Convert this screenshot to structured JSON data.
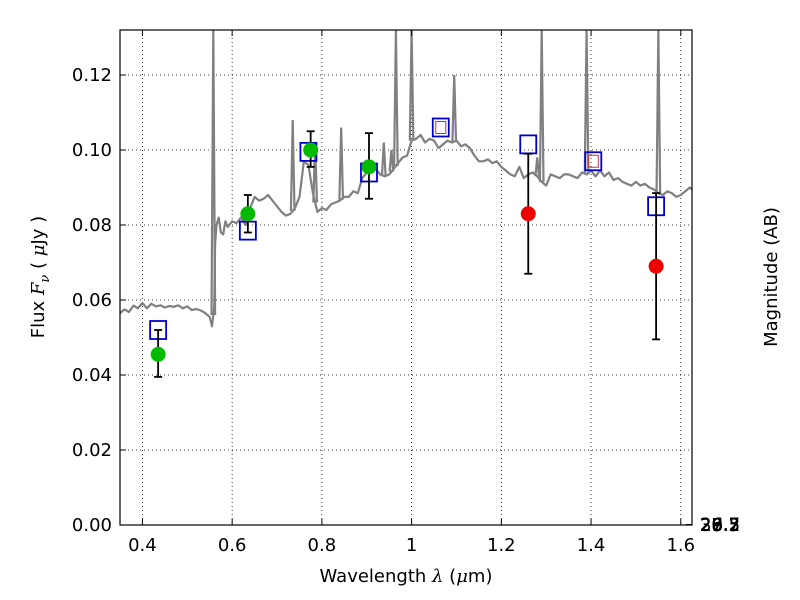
{
  "chart_data": {
    "type": "scatter",
    "title": "",
    "xlabel": {
      "prefix": "Wavelength  ",
      "symbol": "λ",
      "unit_open": " (",
      "unit_mu": "μ",
      "unit_close": "m)"
    },
    "ylabel": {
      "prefix": "Flux  ",
      "symbol": "F",
      "subscript": "ν",
      "unit_open": "  (  ",
      "unit_mu": "μ",
      "unit_close": "Jy )"
    },
    "y2label": "Magnitude (AB)",
    "xlim": [
      0.35,
      1.625
    ],
    "ylim": [
      0.0,
      0.132
    ],
    "grid": true,
    "xticks": [
      {
        "value": 0.4,
        "label": "0.4"
      },
      {
        "value": 0.6,
        "label": "0.6"
      },
      {
        "value": 0.8,
        "label": "0.8"
      },
      {
        "value": 1.0,
        "label": "1"
      },
      {
        "value": 1.2,
        "label": "1.2"
      },
      {
        "value": 1.4,
        "label": "1.4"
      },
      {
        "value": 1.6,
        "label": "1.6"
      }
    ],
    "yticks": [
      {
        "value": 0.0,
        "label": "0.00"
      },
      {
        "value": 0.02,
        "label": "0.02"
      },
      {
        "value": 0.04,
        "label": "0.04"
      },
      {
        "value": 0.06,
        "label": "0.06"
      },
      {
        "value": 0.08,
        "label": "0.08"
      },
      {
        "value": 0.1,
        "label": "0.10"
      },
      {
        "value": 0.12,
        "label": "0.12"
      }
    ],
    "y2ticks": [
      {
        "label": "26.2",
        "value": 26.2
      },
      {
        "label": "26.3",
        "value": 26.3
      },
      {
        "label": "26.5",
        "value": 26.5
      },
      {
        "label": "26.7",
        "value": 26.7
      },
      {
        "label": "27",
        "value": 27.0
      },
      {
        "label": "27.2",
        "value": 27.2
      },
      {
        "label": "27.5",
        "value": 27.5
      },
      {
        "label": "28",
        "value": 28.0
      },
      {
        "label": "28.5",
        "value": 28.5
      },
      {
        "label": "29",
        "value": 29.0
      },
      {
        "label": "30",
        "value": 30.0
      }
    ],
    "colors": {
      "spectrum": "#808080",
      "model_squares": "#0000cc",
      "model_square_inner": "#cc3333",
      "obs_green": "#00bb00",
      "obs_red": "#ee0000",
      "errorbar": "#000000"
    },
    "series": [
      {
        "kind": "spectrum-line",
        "x": [
          0.35,
          0.36,
          0.37,
          0.38,
          0.39,
          0.4,
          0.41,
          0.42,
          0.43,
          0.44,
          0.45,
          0.46,
          0.47,
          0.48,
          0.49,
          0.5,
          0.51,
          0.52,
          0.53,
          0.54,
          0.55,
          0.555,
          0.56,
          0.562,
          0.565,
          0.57,
          0.575,
          0.58,
          0.585,
          0.59,
          0.6,
          0.61,
          0.62,
          0.63,
          0.64,
          0.65,
          0.66,
          0.67,
          0.68,
          0.69,
          0.7,
          0.71,
          0.72,
          0.73,
          0.74,
          0.75,
          0.76,
          0.77,
          0.78,
          0.79,
          0.8,
          0.81,
          0.82,
          0.83,
          0.84,
          0.85,
          0.86,
          0.87,
          0.88,
          0.89,
          0.9,
          0.91,
          0.92,
          0.93,
          0.94,
          0.95,
          0.96,
          0.97,
          0.98,
          0.99,
          1.0,
          1.01,
          1.02,
          1.03,
          1.04,
          1.05,
          1.06,
          1.07,
          1.08,
          1.09,
          1.1,
          1.11,
          1.12,
          1.13,
          1.14,
          1.15,
          1.16,
          1.17,
          1.18,
          1.19,
          1.2,
          1.21,
          1.22,
          1.23,
          1.24,
          1.25,
          1.26,
          1.27,
          1.28,
          1.29,
          1.3,
          1.31,
          1.32,
          1.33,
          1.34,
          1.35,
          1.36,
          1.37,
          1.38,
          1.39,
          1.4,
          1.41,
          1.42,
          1.43,
          1.44,
          1.45,
          1.46,
          1.47,
          1.48,
          1.49,
          1.5,
          1.51,
          1.52,
          1.53,
          1.54,
          1.55,
          1.56,
          1.57,
          1.58,
          1.59,
          1.6,
          1.61,
          1.62,
          1.625
        ],
        "y": [
          0.0565,
          0.0575,
          0.0568,
          0.0585,
          0.0578,
          0.0592,
          0.0578,
          0.059,
          0.0583,
          0.0586,
          0.058,
          0.0584,
          0.0582,
          0.0586,
          0.0578,
          0.0583,
          0.0573,
          0.0576,
          0.0572,
          0.0565,
          0.0555,
          0.053,
          0.058,
          0.075,
          0.08,
          0.082,
          0.078,
          0.0775,
          0.081,
          0.0795,
          0.081,
          0.0805,
          0.082,
          0.08,
          0.0845,
          0.0875,
          0.0865,
          0.087,
          0.088,
          0.0865,
          0.085,
          0.0835,
          0.0825,
          0.083,
          0.0845,
          0.0875,
          0.097,
          0.096,
          0.0885,
          0.0835,
          0.0845,
          0.084,
          0.0855,
          0.086,
          0.0865,
          0.0875,
          0.0875,
          0.089,
          0.0885,
          0.0925,
          0.094,
          0.094,
          0.095,
          0.0935,
          0.093,
          0.0935,
          0.095,
          0.0965,
          0.098,
          0.0985,
          0.1025,
          0.103,
          0.104,
          0.102,
          0.103,
          0.1025,
          0.1005,
          0.1015,
          0.1025,
          0.102,
          0.1025,
          0.101,
          0.1015,
          0.1005,
          0.0985,
          0.097,
          0.097,
          0.0975,
          0.0965,
          0.097,
          0.0955,
          0.0945,
          0.0935,
          0.093,
          0.0955,
          0.0925,
          0.0935,
          0.094,
          0.093,
          0.0915,
          0.0905,
          0.0935,
          0.093,
          0.0925,
          0.0935,
          0.0935,
          0.093,
          0.0925,
          0.094,
          0.0935,
          0.0945,
          0.093,
          0.0945,
          0.093,
          0.094,
          0.092,
          0.0925,
          0.0915,
          0.091,
          0.0905,
          0.0915,
          0.0905,
          0.091,
          0.09,
          0.0895,
          0.0885,
          0.088,
          0.089,
          0.0885,
          0.0875,
          0.088,
          0.089,
          0.09,
          0.0895
        ]
      },
      {
        "kind": "emission-line-spikes",
        "x": [
          0.558,
          0.735,
          0.785,
          0.843,
          0.938,
          0.955,
          0.965,
          1.0,
          1.095,
          1.29,
          1.28,
          1.39,
          1.55
        ],
        "peak": [
          0.132,
          0.108,
          0.102,
          0.106,
          0.102,
          0.1,
          0.132,
          0.132,
          0.12,
          0.132,
          0.098,
          0.132,
          0.132
        ]
      },
      {
        "kind": "model-squares",
        "x": [
          0.435,
          0.635,
          0.77,
          0.905,
          1.065,
          1.26,
          1.405,
          1.545
        ],
        "y": [
          0.052,
          0.0785,
          0.0995,
          0.094,
          0.106,
          0.1015,
          0.097,
          0.085
        ]
      },
      {
        "kind": "observed-points",
        "points": [
          {
            "x": 0.435,
            "y": 0.0455,
            "err_low": 0.0395,
            "err_high": 0.052,
            "color": "green"
          },
          {
            "x": 0.635,
            "y": 0.083,
            "err_low": 0.078,
            "err_high": 0.088,
            "color": "green"
          },
          {
            "x": 0.775,
            "y": 0.1,
            "err_low": 0.0955,
            "err_high": 0.105,
            "color": "green"
          },
          {
            "x": 0.905,
            "y": 0.0955,
            "err_low": 0.087,
            "err_high": 0.1045,
            "color": "green"
          },
          {
            "x": 1.26,
            "y": 0.083,
            "err_low": 0.067,
            "err_high": 0.099,
            "color": "red"
          },
          {
            "x": 1.545,
            "y": 0.069,
            "err_low": 0.0495,
            "err_high": 0.0885,
            "color": "red"
          }
        ]
      }
    ]
  }
}
